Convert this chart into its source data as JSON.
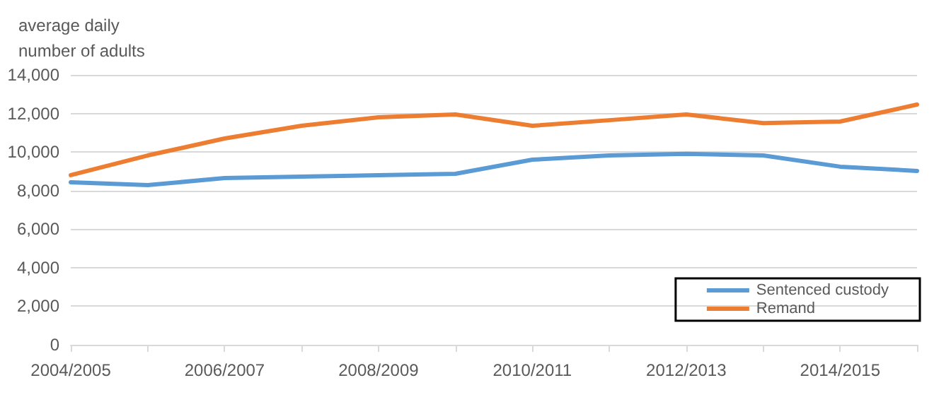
{
  "chart_data": {
    "type": "line",
    "ylabel": "average daily\nnumber of adults",
    "categories": [
      "2004/2005",
      null,
      "2006/2007",
      null,
      "2008/2009",
      null,
      "2010/2011",
      null,
      "2012/2013",
      null,
      "2014/2015",
      null
    ],
    "series": [
      {
        "name": "Sentenced custody",
        "color": "#5b9bd5",
        "values": [
          8430,
          8280,
          8650,
          8720,
          8800,
          8870,
          9600,
          9820,
          9900,
          9820,
          9240,
          9020
        ]
      },
      {
        "name": "Remand",
        "color": "#ed7d31",
        "values": [
          8800,
          9820,
          10700,
          11360,
          11800,
          11950,
          11360,
          11650,
          11950,
          11500,
          11580,
          12460
        ]
      }
    ],
    "ylim": [
      0,
      14000
    ],
    "yticks": [
      0,
      {
        "value": 2000,
        "label": "2,000"
      },
      {
        "value": 4000,
        "label": "4,000"
      },
      {
        "value": 6000,
        "label": "6,000"
      },
      {
        "value": 8000,
        "label": "8,000"
      },
      {
        "value": 10000,
        "label": "10,000"
      },
      {
        "value": 12000,
        "label": "12,000"
      },
      {
        "value": 14000,
        "label": "14,000"
      }
    ],
    "grid": "y",
    "legend": "bottom right",
    "marker": "none",
    "line_style": "solid"
  }
}
